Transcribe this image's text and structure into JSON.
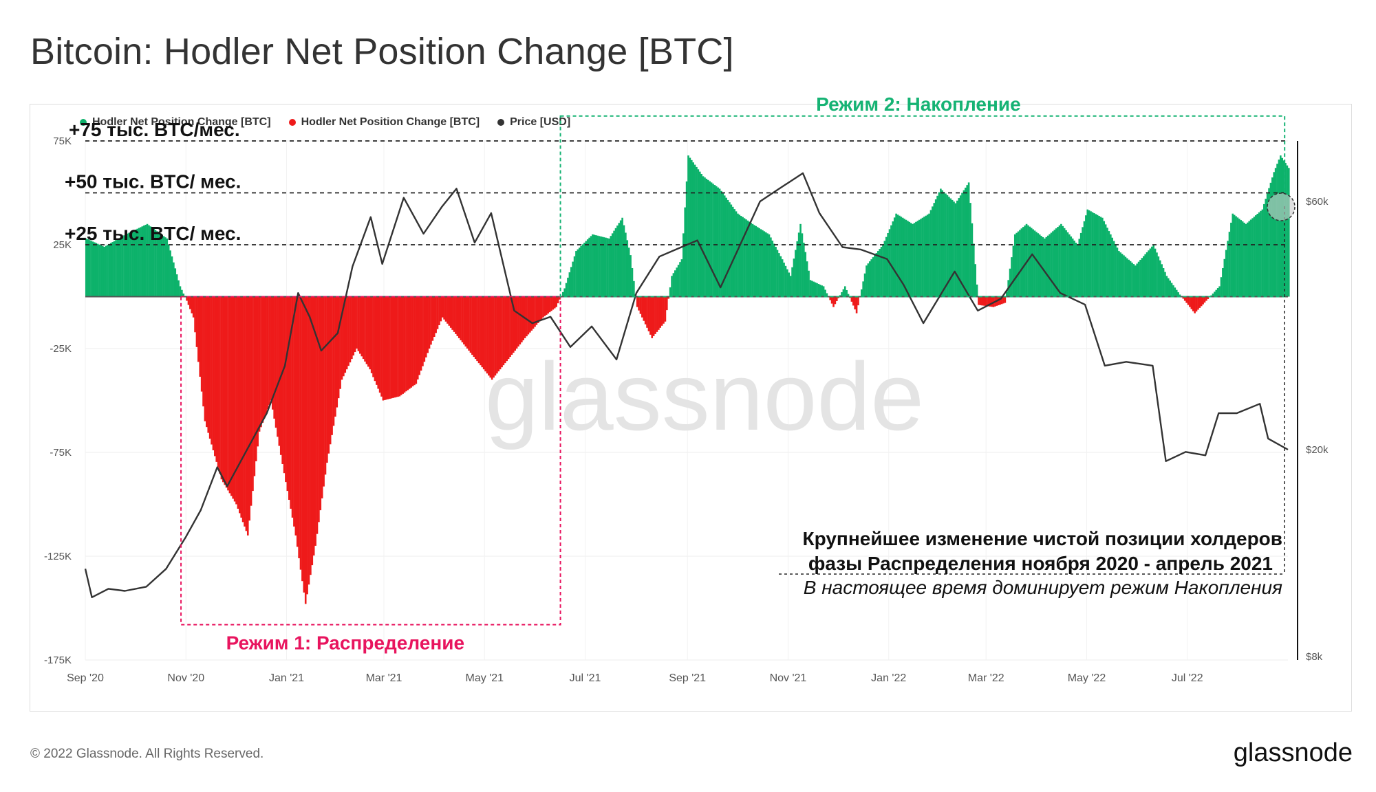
{
  "title": "Bitcoin: Hodler Net Position Change [BTC]",
  "footer": "© 2022 Glassnode. All Rights Reserved.",
  "brand": "glassnode",
  "watermark": "glassnode",
  "colors": {
    "green": "#0db26b",
    "red": "#ee1a1a",
    "price": "#333333",
    "pink": "#e8145e",
    "teal": "#16b374"
  },
  "chart_data": {
    "type": "area",
    "legend": [
      {
        "label": "Hodler Net Position Change [BTC]",
        "color": "#0db26b"
      },
      {
        "label": "Hodler Net Position Change [BTC]",
        "color": "#ee1a1a"
      },
      {
        "label": "Price [USD]",
        "color": "#333333"
      }
    ],
    "legend_position": "top-left",
    "grid": true,
    "x_axis": {
      "range": [
        "2020-09-01",
        "2022-08-31"
      ],
      "ticks": [
        "Sep '20",
        "Nov '20",
        "Jan '21",
        "Mar '21",
        "May '21",
        "Jul '21",
        "Sep '21",
        "Nov '21",
        "Jan '22",
        "Mar '22",
        "May '22",
        "Jul '22"
      ],
      "tick_dates": [
        "2020-09-01",
        "2020-11-01",
        "2021-01-01",
        "2021-03-01",
        "2021-05-01",
        "2021-07-01",
        "2021-09-01",
        "2021-11-01",
        "2022-01-01",
        "2022-03-01",
        "2022-05-01",
        "2022-07-01"
      ]
    },
    "y_left": {
      "range": [
        -175000,
        75000
      ],
      "ticks": [
        75000,
        25000,
        -25000,
        -75000,
        -125000,
        -175000
      ],
      "tick_labels": [
        "75K",
        "25K",
        "-25K",
        "-75K",
        "-125K",
        "-175K"
      ]
    },
    "y_right": {
      "scale": "log",
      "range": [
        8000,
        60000
      ],
      "ticks": [
        60000,
        20000,
        8000
      ],
      "tick_labels": [
        "$60k",
        "$20k",
        "$8k"
      ]
    },
    "net_position_series": {
      "name": "Hodler Net Position Change [BTC]",
      "points": [
        [
          "2020-09-01",
          28000
        ],
        [
          "2020-09-12",
          24000
        ],
        [
          "2020-09-25",
          30000
        ],
        [
          "2020-10-08",
          35000
        ],
        [
          "2020-10-20",
          28000
        ],
        [
          "2020-10-28",
          5000
        ],
        [
          "2020-11-01",
          -2000
        ],
        [
          "2020-11-05",
          -10000
        ],
        [
          "2020-11-12",
          -60000
        ],
        [
          "2020-11-22",
          -88000
        ],
        [
          "2020-12-01",
          -100000
        ],
        [
          "2020-12-08",
          -115000
        ],
        [
          "2020-12-15",
          -65000
        ],
        [
          "2020-12-22",
          -50000
        ],
        [
          "2020-12-30",
          -85000
        ],
        [
          "2021-01-06",
          -115000
        ],
        [
          "2021-01-12",
          -148000
        ],
        [
          "2021-01-18",
          -120000
        ],
        [
          "2021-01-25",
          -80000
        ],
        [
          "2021-02-03",
          -40000
        ],
        [
          "2021-02-12",
          -25000
        ],
        [
          "2021-02-20",
          -35000
        ],
        [
          "2021-02-28",
          -50000
        ],
        [
          "2021-03-10",
          -48000
        ],
        [
          "2021-03-20",
          -42000
        ],
        [
          "2021-03-28",
          -25000
        ],
        [
          "2021-04-05",
          -10000
        ],
        [
          "2021-04-15",
          -20000
        ],
        [
          "2021-04-25",
          -30000
        ],
        [
          "2021-05-05",
          -40000
        ],
        [
          "2021-05-15",
          -30000
        ],
        [
          "2021-05-25",
          -20000
        ],
        [
          "2021-06-05",
          -10000
        ],
        [
          "2021-06-13",
          -5000
        ],
        [
          "2021-06-18",
          4000
        ],
        [
          "2021-06-25",
          22000
        ],
        [
          "2021-07-05",
          30000
        ],
        [
          "2021-07-15",
          28000
        ],
        [
          "2021-07-23",
          38000
        ],
        [
          "2021-07-28",
          20000
        ],
        [
          "2021-08-01",
          -5000
        ],
        [
          "2021-08-10",
          -20000
        ],
        [
          "2021-08-18",
          -12000
        ],
        [
          "2021-08-22",
          10000
        ],
        [
          "2021-08-28",
          18000
        ],
        [
          "2021-09-01",
          68000
        ],
        [
          "2021-09-10",
          58000
        ],
        [
          "2021-09-20",
          52000
        ],
        [
          "2021-10-01",
          40000
        ],
        [
          "2021-10-10",
          35000
        ],
        [
          "2021-10-20",
          30000
        ],
        [
          "2021-10-28",
          18000
        ],
        [
          "2021-11-02",
          10000
        ],
        [
          "2021-11-08",
          35000
        ],
        [
          "2021-11-14",
          8000
        ],
        [
          "2021-11-22",
          5000
        ],
        [
          "2021-11-28",
          -5000
        ],
        [
          "2021-12-05",
          5000
        ],
        [
          "2021-12-12",
          -8000
        ],
        [
          "2021-12-18",
          15000
        ],
        [
          "2021-12-28",
          25000
        ],
        [
          "2022-01-05",
          40000
        ],
        [
          "2022-01-15",
          35000
        ],
        [
          "2022-01-25",
          40000
        ],
        [
          "2022-02-01",
          52000
        ],
        [
          "2022-02-10",
          45000
        ],
        [
          "2022-02-18",
          55000
        ],
        [
          "2022-02-24",
          -4000
        ],
        [
          "2022-03-05",
          -5000
        ],
        [
          "2022-03-12",
          -3000
        ],
        [
          "2022-03-18",
          30000
        ],
        [
          "2022-03-25",
          35000
        ],
        [
          "2022-04-05",
          28000
        ],
        [
          "2022-04-15",
          35000
        ],
        [
          "2022-04-25",
          25000
        ],
        [
          "2022-05-01",
          42000
        ],
        [
          "2022-05-10",
          38000
        ],
        [
          "2022-05-20",
          22000
        ],
        [
          "2022-05-30",
          15000
        ],
        [
          "2022-06-10",
          25000
        ],
        [
          "2022-06-18",
          10000
        ],
        [
          "2022-06-26",
          1000
        ],
        [
          "2022-07-01",
          -4000
        ],
        [
          "2022-07-05",
          -8000
        ],
        [
          "2022-07-12",
          -2000
        ],
        [
          "2022-07-20",
          5000
        ],
        [
          "2022-07-28",
          40000
        ],
        [
          "2022-08-05",
          35000
        ],
        [
          "2022-08-15",
          42000
        ],
        [
          "2022-08-22",
          60000
        ],
        [
          "2022-08-26",
          68000
        ],
        [
          "2022-08-31",
          62000
        ]
      ]
    },
    "price_series": {
      "name": "Price [USD]",
      "points": [
        [
          "2020-09-01",
          11800
        ],
        [
          "2020-09-05",
          10400
        ],
        [
          "2020-09-15",
          10800
        ],
        [
          "2020-09-25",
          10700
        ],
        [
          "2020-10-08",
          10900
        ],
        [
          "2020-10-20",
          11800
        ],
        [
          "2020-11-01",
          13600
        ],
        [
          "2020-11-10",
          15300
        ],
        [
          "2020-11-20",
          18500
        ],
        [
          "2020-11-26",
          17000
        ],
        [
          "2020-12-05",
          19200
        ],
        [
          "2020-12-20",
          23500
        ],
        [
          "2020-12-31",
          29000
        ],
        [
          "2021-01-08",
          40000
        ],
        [
          "2021-01-15",
          36000
        ],
        [
          "2021-01-22",
          31000
        ],
        [
          "2021-02-01",
          33500
        ],
        [
          "2021-02-10",
          45000
        ],
        [
          "2021-02-21",
          56000
        ],
        [
          "2021-02-28",
          45500
        ],
        [
          "2021-03-13",
          61000
        ],
        [
          "2021-03-25",
          52000
        ],
        [
          "2021-04-05",
          58500
        ],
        [
          "2021-04-14",
          63500
        ],
        [
          "2021-04-25",
          50000
        ],
        [
          "2021-05-05",
          57000
        ],
        [
          "2021-05-19",
          37000
        ],
        [
          "2021-05-30",
          35000
        ],
        [
          "2021-06-10",
          36000
        ],
        [
          "2021-06-22",
          31500
        ],
        [
          "2021-07-05",
          34500
        ],
        [
          "2021-07-20",
          29800
        ],
        [
          "2021-08-01",
          40000
        ],
        [
          "2021-08-15",
          47000
        ],
        [
          "2021-08-25",
          48500
        ],
        [
          "2021-09-07",
          50500
        ],
        [
          "2021-09-21",
          41000
        ],
        [
          "2021-10-01",
          48000
        ],
        [
          "2021-10-15",
          60000
        ],
        [
          "2021-10-25",
          63000
        ],
        [
          "2021-11-10",
          68000
        ],
        [
          "2021-11-20",
          57000
        ],
        [
          "2021-12-04",
          49000
        ],
        [
          "2021-12-15",
          48500
        ],
        [
          "2021-12-31",
          46500
        ],
        [
          "2022-01-10",
          41500
        ],
        [
          "2022-01-22",
          35000
        ],
        [
          "2022-02-10",
          44000
        ],
        [
          "2022-02-24",
          37000
        ],
        [
          "2022-03-10",
          39000
        ],
        [
          "2022-03-29",
          47500
        ],
        [
          "2022-04-15",
          40000
        ],
        [
          "2022-04-30",
          38000
        ],
        [
          "2022-05-12",
          29000
        ],
        [
          "2022-05-25",
          29500
        ],
        [
          "2022-06-10",
          29000
        ],
        [
          "2022-06-18",
          19000
        ],
        [
          "2022-06-30",
          19800
        ],
        [
          "2022-07-12",
          19500
        ],
        [
          "2022-07-20",
          23500
        ],
        [
          "2022-07-31",
          23500
        ],
        [
          "2022-08-14",
          24500
        ],
        [
          "2022-08-19",
          21000
        ],
        [
          "2022-08-31",
          20000
        ]
      ]
    },
    "reference_lines": [
      {
        "value": 75000,
        "label": "+75 тыс. BTC/мес."
      },
      {
        "value": 50000,
        "label": "+50 тыс. BTC/ мес."
      },
      {
        "value": 25000,
        "label": "+25 тыс. BTC/ мес."
      }
    ],
    "regimes": [
      {
        "label": "Режим 1: Распределение",
        "start": "2020-10-29",
        "end": "2021-06-16",
        "y_top": 0,
        "y_bottom": -158000,
        "color": "#e8145e"
      },
      {
        "label": "Режим 2: Накопление",
        "start": "2021-06-16",
        "end": "2022-08-29",
        "y_top": 87000,
        "y_bottom": 0,
        "color": "#16b374"
      }
    ],
    "annotation": {
      "line1": "Крупнейшее изменение чистой позиции холдеров",
      "line2": "фазы Распределения ноября 2020 - апрель 2021",
      "line3": "В настоящее время доминирует режим Накопления"
    }
  }
}
